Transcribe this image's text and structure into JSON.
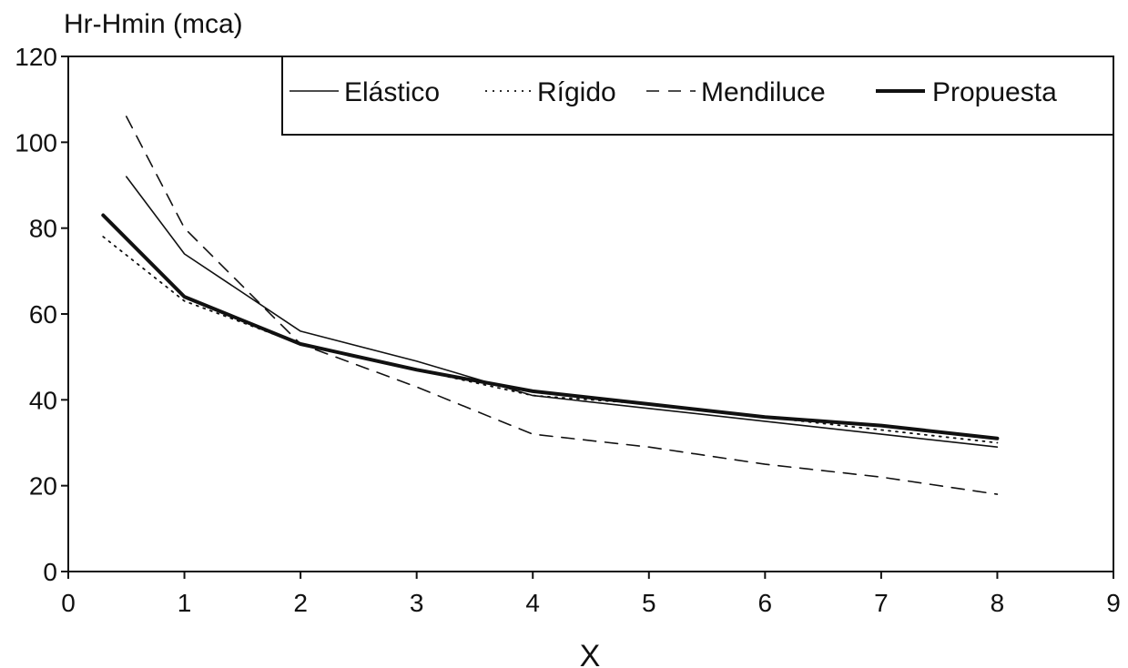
{
  "chart_data": {
    "type": "line",
    "title": "",
    "xlabel": "X",
    "ylabel": "Hr-Hmin (mca)",
    "xlim": [
      0,
      9
    ],
    "ylim": [
      0,
      120
    ],
    "xticks": [
      0,
      1,
      2,
      3,
      4,
      5,
      6,
      7,
      8,
      9
    ],
    "yticks": [
      0,
      20,
      40,
      60,
      80,
      100,
      120
    ],
    "grid": false,
    "legend_position": "top-right",
    "series": [
      {
        "name": "Elástico",
        "style": "thin-solid",
        "x": [
          0.5,
          1,
          2,
          3,
          4,
          5,
          6,
          7,
          8
        ],
        "y": [
          92,
          74,
          56,
          49,
          41,
          38,
          35,
          32,
          29
        ]
      },
      {
        "name": "Rígido",
        "style": "dotted",
        "x": [
          0.3,
          1,
          2,
          3,
          4,
          5,
          6,
          7,
          8
        ],
        "y": [
          78,
          63,
          53,
          47,
          41,
          39,
          36,
          33,
          30
        ]
      },
      {
        "name": "Mendiluce",
        "style": "dashed",
        "x": [
          0.5,
          1,
          2,
          3,
          4,
          5,
          6,
          7,
          8
        ],
        "y": [
          106,
          80,
          53,
          43,
          32,
          29,
          25,
          22,
          18
        ]
      },
      {
        "name": "Propuesta",
        "style": "thick-solid",
        "x": [
          0.3,
          1,
          2,
          3,
          4,
          5,
          6,
          7,
          8
        ],
        "y": [
          83,
          64,
          53,
          47,
          42,
          39,
          36,
          34,
          31
        ]
      }
    ]
  }
}
